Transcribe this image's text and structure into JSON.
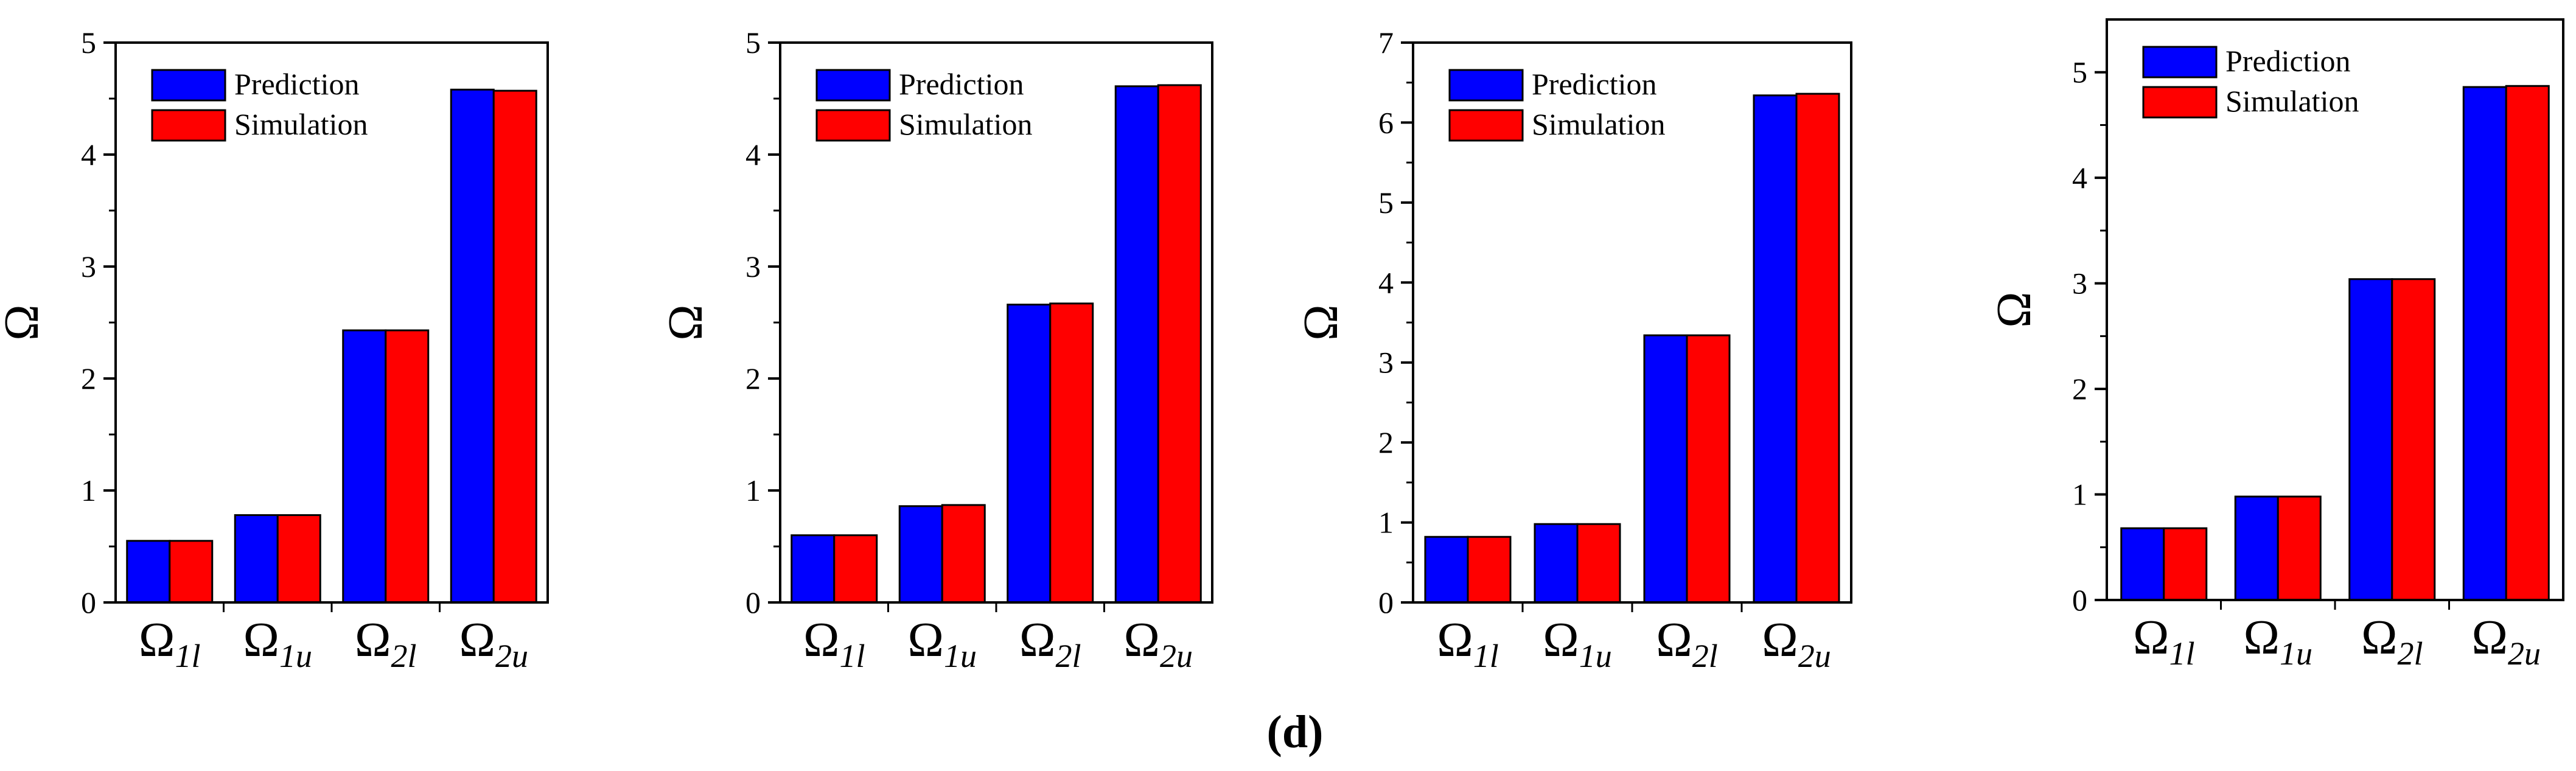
{
  "figure": {
    "caption": "(d)"
  },
  "colors": {
    "prediction": "#0000ff",
    "simulation": "#ff0000",
    "axis": "#000000"
  },
  "chart_data": [
    {
      "type": "bar",
      "ylabel": "Ω",
      "ylim": [
        0,
        5
      ],
      "yticks": [
        0,
        1,
        2,
        3,
        4,
        5
      ],
      "categories": [
        {
          "main": "Ω",
          "sub": "1l"
        },
        {
          "main": "Ω",
          "sub": "1u"
        },
        {
          "main": "Ω",
          "sub": "2l"
        },
        {
          "main": "Ω",
          "sub": "2u"
        }
      ],
      "legend": {
        "position": "top-left"
      },
      "series": [
        {
          "name": "Prediction",
          "values": [
            0.55,
            0.78,
            2.43,
            4.58
          ]
        },
        {
          "name": "Simulation",
          "values": [
            0.55,
            0.78,
            2.43,
            4.57
          ]
        }
      ]
    },
    {
      "type": "bar",
      "ylabel": "Ω",
      "ylim": [
        0,
        5
      ],
      "yticks": [
        0,
        1,
        2,
        3,
        4,
        5
      ],
      "categories": [
        {
          "main": "Ω",
          "sub": "1l"
        },
        {
          "main": "Ω",
          "sub": "1u"
        },
        {
          "main": "Ω",
          "sub": "2l"
        },
        {
          "main": "Ω",
          "sub": "2u"
        }
      ],
      "legend": {
        "position": "top-left"
      },
      "series": [
        {
          "name": "Prediction",
          "values": [
            0.6,
            0.86,
            2.66,
            4.61
          ]
        },
        {
          "name": "Simulation",
          "values": [
            0.6,
            0.87,
            2.67,
            4.62
          ]
        }
      ]
    },
    {
      "type": "bar",
      "ylabel": "Ω",
      "ylim": [
        0,
        7
      ],
      "yticks": [
        0,
        1,
        2,
        3,
        4,
        5,
        6,
        7
      ],
      "categories": [
        {
          "main": "Ω",
          "sub": "1l"
        },
        {
          "main": "Ω",
          "sub": "1u"
        },
        {
          "main": "Ω",
          "sub": "2l"
        },
        {
          "main": "Ω",
          "sub": "2u"
        }
      ],
      "legend": {
        "position": "top-left"
      },
      "series": [
        {
          "name": "Prediction",
          "values": [
            0.82,
            0.98,
            3.34,
            6.34
          ]
        },
        {
          "name": "Simulation",
          "values": [
            0.82,
            0.98,
            3.34,
            6.36
          ]
        }
      ]
    },
    {
      "type": "bar",
      "ylabel": "Ω",
      "ylim": [
        0,
        5.5
      ],
      "yticks": [
        0,
        1,
        2,
        3,
        4,
        5
      ],
      "categories": [
        {
          "main": "Ω",
          "sub": "1l"
        },
        {
          "main": "Ω",
          "sub": "1u"
        },
        {
          "main": "Ω",
          "sub": "2l"
        },
        {
          "main": "Ω",
          "sub": "2u"
        }
      ],
      "legend": {
        "position": "top-left"
      },
      "series": [
        {
          "name": "Prediction",
          "values": [
            0.68,
            0.98,
            3.04,
            4.86
          ]
        },
        {
          "name": "Simulation",
          "values": [
            0.68,
            0.98,
            3.04,
            4.87
          ]
        }
      ]
    }
  ]
}
